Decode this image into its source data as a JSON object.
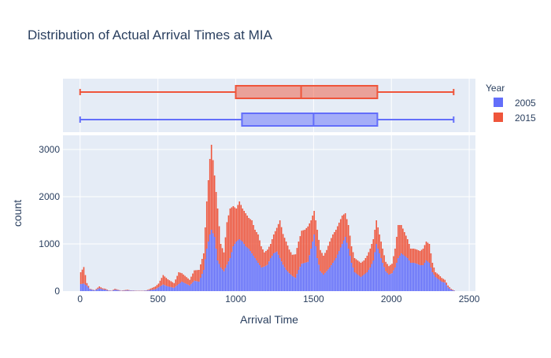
{
  "chart_data": {
    "type": "histogram",
    "title": "Distribution of Actual Arrival Times at MIA",
    "xlabel": "Arrival Time",
    "ylabel": "count",
    "xlim": [
      -110,
      2540
    ],
    "ylim": [
      0,
      3300
    ],
    "x_ticks": [
      0,
      500,
      1000,
      1500,
      2000,
      2500
    ],
    "y_ticks": [
      0,
      1000,
      2000,
      3000
    ],
    "barmode": "stack",
    "bin_width": 10,
    "legend": {
      "title": "Year",
      "placement": "right"
    },
    "colors": {
      "2005": "#636efa",
      "2015": "#ef553b"
    },
    "series": [
      {
        "name": "2005",
        "box": {
          "min": 0,
          "q1": 1040,
          "median": 1500,
          "q3": 1910,
          "max": 2400
        },
        "keypoints": [
          [
            0,
            150
          ],
          [
            20,
            160
          ],
          [
            40,
            110
          ],
          [
            60,
            40
          ],
          [
            90,
            15
          ],
          [
            120,
            60
          ],
          [
            140,
            40
          ],
          [
            160,
            30
          ],
          [
            180,
            10
          ],
          [
            200,
            5
          ],
          [
            220,
            30
          ],
          [
            240,
            20
          ],
          [
            260,
            5
          ],
          [
            300,
            15
          ],
          [
            320,
            10
          ],
          [
            360,
            5
          ],
          [
            400,
            5
          ],
          [
            420,
            10
          ],
          [
            440,
            20
          ],
          [
            460,
            30
          ],
          [
            480,
            40
          ],
          [
            500,
            80
          ],
          [
            530,
            140
          ],
          [
            560,
            100
          ],
          [
            600,
            70
          ],
          [
            630,
            150
          ],
          [
            650,
            200
          ],
          [
            700,
            120
          ],
          [
            730,
            220
          ],
          [
            760,
            200
          ],
          [
            790,
            450
          ],
          [
            810,
            900
          ],
          [
            830,
            1200
          ],
          [
            840,
            1300
          ],
          [
            860,
            1150
          ],
          [
            880,
            650
          ],
          [
            900,
            500
          ],
          [
            920,
            420
          ],
          [
            940,
            560
          ],
          [
            960,
            700
          ],
          [
            980,
            950
          ],
          [
            1000,
            1050
          ],
          [
            1020,
            1100
          ],
          [
            1040,
            1050
          ],
          [
            1060,
            950
          ],
          [
            1080,
            900
          ],
          [
            1100,
            800
          ],
          [
            1120,
            700
          ],
          [
            1140,
            600
          ],
          [
            1160,
            500
          ],
          [
            1180,
            520
          ],
          [
            1200,
            560
          ],
          [
            1220,
            700
          ],
          [
            1240,
            800
          ],
          [
            1260,
            840
          ],
          [
            1280,
            700
          ],
          [
            1300,
            560
          ],
          [
            1320,
            450
          ],
          [
            1340,
            380
          ],
          [
            1360,
            320
          ],
          [
            1380,
            280
          ],
          [
            1400,
            450
          ],
          [
            1420,
            580
          ],
          [
            1440,
            600
          ],
          [
            1460,
            620
          ],
          [
            1480,
            900
          ],
          [
            1500,
            1200
          ],
          [
            1520,
            700
          ],
          [
            1540,
            420
          ],
          [
            1560,
            350
          ],
          [
            1580,
            420
          ],
          [
            1600,
            500
          ],
          [
            1620,
            600
          ],
          [
            1640,
            700
          ],
          [
            1660,
            850
          ],
          [
            1680,
            1000
          ],
          [
            1700,
            1150
          ],
          [
            1720,
            900
          ],
          [
            1740,
            600
          ],
          [
            1760,
            400
          ],
          [
            1780,
            350
          ],
          [
            1800,
            300
          ],
          [
            1820,
            350
          ],
          [
            1840,
            400
          ],
          [
            1860,
            500
          ],
          [
            1880,
            650
          ],
          [
            1900,
            1000
          ],
          [
            1920,
            800
          ],
          [
            1940,
            600
          ],
          [
            1960,
            420
          ],
          [
            1980,
            350
          ],
          [
            2000,
            380
          ],
          [
            2020,
            500
          ],
          [
            2040,
            700
          ],
          [
            2060,
            800
          ],
          [
            2080,
            750
          ],
          [
            2100,
            700
          ],
          [
            2120,
            600
          ],
          [
            2140,
            600
          ],
          [
            2160,
            580
          ],
          [
            2180,
            550
          ],
          [
            2200,
            550
          ],
          [
            2220,
            650
          ],
          [
            2240,
            600
          ],
          [
            2260,
            400
          ],
          [
            2280,
            300
          ],
          [
            2300,
            250
          ],
          [
            2320,
            200
          ],
          [
            2340,
            180
          ],
          [
            2360,
            80
          ],
          [
            2380,
            30
          ],
          [
            2400,
            10
          ]
        ]
      },
      {
        "name": "2015",
        "box": {
          "min": 0,
          "q1": 1000,
          "median": 1420,
          "q3": 1910,
          "max": 2400
        },
        "keypoints": [
          [
            0,
            250
          ],
          [
            20,
            350
          ],
          [
            40,
            60
          ],
          [
            60,
            10
          ],
          [
            90,
            5
          ],
          [
            120,
            40
          ],
          [
            140,
            20
          ],
          [
            160,
            20
          ],
          [
            180,
            5
          ],
          [
            200,
            5
          ],
          [
            220,
            20
          ],
          [
            240,
            10
          ],
          [
            260,
            5
          ],
          [
            300,
            15
          ],
          [
            320,
            5
          ],
          [
            360,
            5
          ],
          [
            400,
            5
          ],
          [
            420,
            5
          ],
          [
            440,
            20
          ],
          [
            460,
            40
          ],
          [
            480,
            60
          ],
          [
            500,
            80
          ],
          [
            530,
            200
          ],
          [
            560,
            150
          ],
          [
            600,
            100
          ],
          [
            630,
            250
          ],
          [
            650,
            180
          ],
          [
            700,
            120
          ],
          [
            730,
            220
          ],
          [
            760,
            250
          ],
          [
            790,
            350
          ],
          [
            810,
            1000
          ],
          [
            830,
            1600
          ],
          [
            840,
            1800
          ],
          [
            860,
            1300
          ],
          [
            880,
            1100
          ],
          [
            900,
            500
          ],
          [
            920,
            400
          ],
          [
            940,
            900
          ],
          [
            960,
            1050
          ],
          [
            980,
            850
          ],
          [
            1000,
            700
          ],
          [
            1020,
            800
          ],
          [
            1040,
            700
          ],
          [
            1060,
            700
          ],
          [
            1080,
            650
          ],
          [
            1100,
            700
          ],
          [
            1120,
            600
          ],
          [
            1140,
            600
          ],
          [
            1160,
            450
          ],
          [
            1180,
            300
          ],
          [
            1200,
            320
          ],
          [
            1220,
            300
          ],
          [
            1240,
            400
          ],
          [
            1260,
            500
          ],
          [
            1280,
            800
          ],
          [
            1300,
            650
          ],
          [
            1320,
            600
          ],
          [
            1340,
            500
          ],
          [
            1360,
            450
          ],
          [
            1380,
            500
          ],
          [
            1400,
            600
          ],
          [
            1420,
            700
          ],
          [
            1440,
            700
          ],
          [
            1460,
            750
          ],
          [
            1480,
            600
          ],
          [
            1500,
            500
          ],
          [
            1520,
            600
          ],
          [
            1540,
            450
          ],
          [
            1560,
            400
          ],
          [
            1580,
            450
          ],
          [
            1600,
            550
          ],
          [
            1620,
            600
          ],
          [
            1640,
            600
          ],
          [
            1660,
            600
          ],
          [
            1680,
            600
          ],
          [
            1700,
            500
          ],
          [
            1720,
            500
          ],
          [
            1740,
            350
          ],
          [
            1760,
            300
          ],
          [
            1780,
            300
          ],
          [
            1800,
            300
          ],
          [
            1820,
            300
          ],
          [
            1840,
            350
          ],
          [
            1860,
            400
          ],
          [
            1880,
            450
          ],
          [
            1900,
            500
          ],
          [
            1920,
            400
          ],
          [
            1940,
            300
          ],
          [
            1960,
            200
          ],
          [
            1980,
            180
          ],
          [
            2000,
            200
          ],
          [
            2020,
            400
          ],
          [
            2040,
            700
          ],
          [
            2060,
            600
          ],
          [
            2080,
            500
          ],
          [
            2100,
            400
          ],
          [
            2120,
            300
          ],
          [
            2140,
            300
          ],
          [
            2160,
            300
          ],
          [
            2180,
            300
          ],
          [
            2200,
            350
          ],
          [
            2220,
            400
          ],
          [
            2240,
            400
          ],
          [
            2260,
            200
          ],
          [
            2280,
            100
          ],
          [
            2300,
            100
          ],
          [
            2320,
            80
          ],
          [
            2340,
            60
          ],
          [
            2360,
            40
          ],
          [
            2380,
            20
          ],
          [
            2400,
            5
          ]
        ]
      }
    ]
  }
}
